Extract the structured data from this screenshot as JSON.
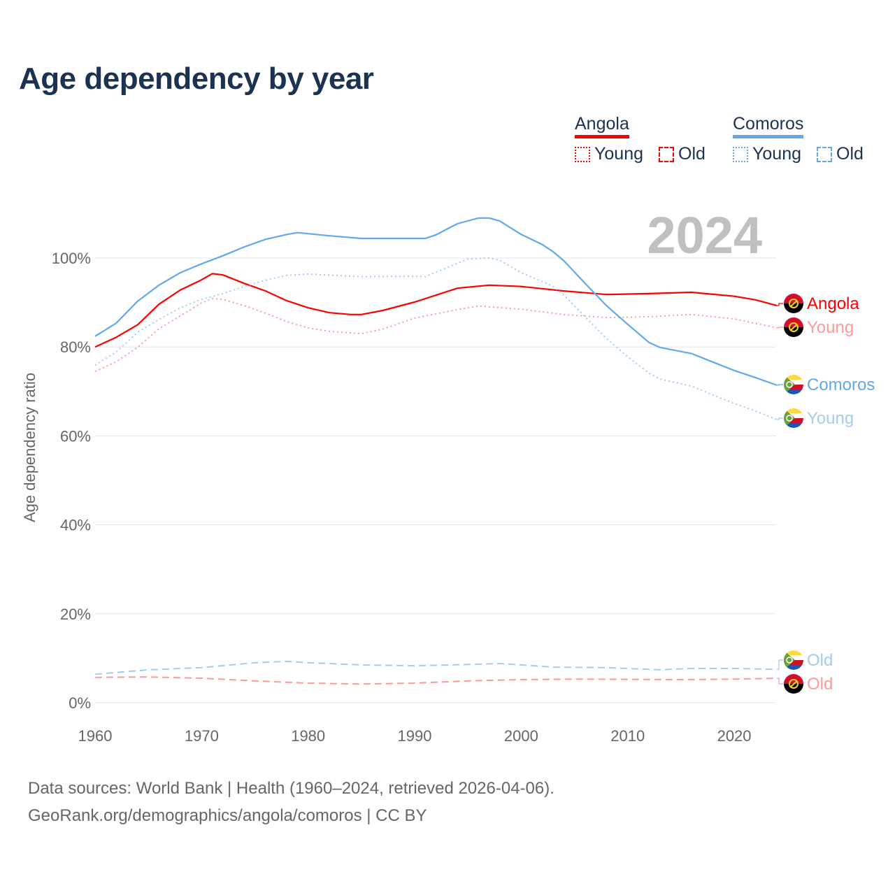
{
  "title": "Age dependency by year",
  "legend": {
    "groups": [
      {
        "country": "Angola",
        "color": "#ff0000",
        "young_label": "Young",
        "old_label": "Old"
      },
      {
        "country": "Comoros",
        "color": "#62a8ea",
        "young_label": "Young",
        "old_label": "Old"
      }
    ]
  },
  "footer": {
    "line1": "Data sources: World Bank | Health (1960–2024, retrieved 2026-04-06).",
    "line2": "GeoRank.org/demographics/angola/comoros | CC BY"
  },
  "chart_data": {
    "type": "line",
    "title": "Age dependency by year",
    "year_watermark": "2024",
    "xlabel": "",
    "ylabel": "Age dependency ratio",
    "xlim": [
      1960,
      2024
    ],
    "ylim": [
      0,
      110
    ],
    "x_ticks": [
      "1960",
      "1970",
      "1980",
      "1990",
      "2000",
      "2010",
      "2020"
    ],
    "y_ticks": [
      "0%",
      "20%",
      "40%",
      "60%",
      "80%",
      "100%"
    ],
    "grid": true,
    "series": [
      {
        "name": "Angola",
        "end_label": "Angola",
        "country": "Angola",
        "kind": "total",
        "color": "#ff0000",
        "style": "solid",
        "points": [
          [
            1960,
            80.0
          ],
          [
            1962,
            82.2
          ],
          [
            1964,
            85.0
          ],
          [
            1966,
            89.6
          ],
          [
            1968,
            92.8
          ],
          [
            1970,
            95.1
          ],
          [
            1971,
            96.5
          ],
          [
            1972,
            96.2
          ],
          [
            1974,
            94.3
          ],
          [
            1976,
            92.6
          ],
          [
            1978,
            90.4
          ],
          [
            1980,
            88.8
          ],
          [
            1982,
            87.7
          ],
          [
            1984,
            87.3
          ],
          [
            1985,
            87.3
          ],
          [
            1987,
            88.2
          ],
          [
            1990,
            90.1
          ],
          [
            1994,
            93.2
          ],
          [
            1997,
            93.9
          ],
          [
            2000,
            93.6
          ],
          [
            2004,
            92.6
          ],
          [
            2008,
            91.8
          ],
          [
            2012,
            92.0
          ],
          [
            2016,
            92.3
          ],
          [
            2020,
            91.4
          ],
          [
            2022,
            90.6
          ],
          [
            2024,
            89.3
          ]
        ]
      },
      {
        "name": "Angola Young",
        "end_label": "Young",
        "country": "Angola",
        "kind": "young",
        "color": "#ff9a9a",
        "style": "dotted",
        "points": [
          [
            1960,
            74.5
          ],
          [
            1962,
            76.7
          ],
          [
            1964,
            79.9
          ],
          [
            1966,
            84.1
          ],
          [
            1968,
            87.0
          ],
          [
            1970,
            89.9
          ],
          [
            1971,
            90.9
          ],
          [
            1972,
            90.7
          ],
          [
            1974,
            89.3
          ],
          [
            1976,
            87.6
          ],
          [
            1978,
            85.7
          ],
          [
            1980,
            84.3
          ],
          [
            1982,
            83.5
          ],
          [
            1985,
            83.0
          ],
          [
            1987,
            84.0
          ],
          [
            1990,
            86.5
          ],
          [
            1994,
            88.4
          ],
          [
            1996,
            89.2
          ],
          [
            2000,
            88.5
          ],
          [
            2004,
            87.3
          ],
          [
            2008,
            86.6
          ],
          [
            2012,
            86.8
          ],
          [
            2016,
            87.3
          ],
          [
            2020,
            86.3
          ],
          [
            2024,
            84.3
          ]
        ]
      },
      {
        "name": "Comoros",
        "end_label": "Comoros",
        "country": "Comoros",
        "kind": "total",
        "color": "#62a8ea",
        "style": "solid",
        "points": [
          [
            1960,
            82.4
          ],
          [
            1962,
            85.4
          ],
          [
            1964,
            90.3
          ],
          [
            1966,
            93.9
          ],
          [
            1968,
            96.7
          ],
          [
            1970,
            98.7
          ],
          [
            1972,
            100.5
          ],
          [
            1974,
            102.5
          ],
          [
            1976,
            104.2
          ],
          [
            1978,
            105.3
          ],
          [
            1979,
            105.7
          ],
          [
            1982,
            105.0
          ],
          [
            1985,
            104.4
          ],
          [
            1990,
            104.4
          ],
          [
            1991,
            104.4
          ],
          [
            1992,
            105.2
          ],
          [
            1994,
            107.7
          ],
          [
            1996,
            109.0
          ],
          [
            1997,
            109.0
          ],
          [
            1998,
            108.3
          ],
          [
            2000,
            105.3
          ],
          [
            2002,
            103.0
          ],
          [
            2003,
            101.4
          ],
          [
            2004,
            99.4
          ],
          [
            2006,
            94.3
          ],
          [
            2008,
            89.3
          ],
          [
            2010,
            85.1
          ],
          [
            2012,
            81.0
          ],
          [
            2013,
            79.9
          ],
          [
            2016,
            78.5
          ],
          [
            2018,
            76.6
          ],
          [
            2020,
            74.7
          ],
          [
            2022,
            73.1
          ],
          [
            2024,
            71.4
          ]
        ]
      },
      {
        "name": "Comoros Young",
        "end_label": "Young",
        "country": "Comoros",
        "kind": "young",
        "color": "#a4cbf2",
        "style": "dotted",
        "points": [
          [
            1960,
            75.9
          ],
          [
            1962,
            78.9
          ],
          [
            1964,
            83.3
          ],
          [
            1966,
            86.2
          ],
          [
            1968,
            88.8
          ],
          [
            1970,
            90.7
          ],
          [
            1972,
            92.0
          ],
          [
            1974,
            93.6
          ],
          [
            1976,
            95.0
          ],
          [
            1978,
            96.1
          ],
          [
            1980,
            96.4
          ],
          [
            1985,
            95.8
          ],
          [
            1990,
            95.9
          ],
          [
            1991,
            95.8
          ],
          [
            1993,
            97.8
          ],
          [
            1995,
            99.8
          ],
          [
            1997,
            100.0
          ],
          [
            1998,
            99.5
          ],
          [
            2000,
            96.7
          ],
          [
            2002,
            94.7
          ],
          [
            2003,
            93.6
          ],
          [
            2004,
            91.7
          ],
          [
            2006,
            86.8
          ],
          [
            2008,
            81.9
          ],
          [
            2010,
            77.8
          ],
          [
            2012,
            74.1
          ],
          [
            2013,
            72.8
          ],
          [
            2016,
            71.2
          ],
          [
            2018,
            69.2
          ],
          [
            2020,
            67.3
          ],
          [
            2022,
            65.6
          ],
          [
            2024,
            63.7
          ]
        ]
      },
      {
        "name": "Comoros Old",
        "end_label": "Old",
        "country": "Comoros",
        "kind": "old",
        "color": "#a4cbf2",
        "style": "dashed",
        "points": [
          [
            1960,
            6.4
          ],
          [
            1965,
            7.4
          ],
          [
            1970,
            7.9
          ],
          [
            1975,
            9.0
          ],
          [
            1978,
            9.3
          ],
          [
            1980,
            9.0
          ],
          [
            1985,
            8.5
          ],
          [
            1990,
            8.3
          ],
          [
            1995,
            8.6
          ],
          [
            1998,
            8.8
          ],
          [
            2000,
            8.5
          ],
          [
            2003,
            8.0
          ],
          [
            2008,
            7.9
          ],
          [
            2013,
            7.4
          ],
          [
            2016,
            7.7
          ],
          [
            2020,
            7.7
          ],
          [
            2024,
            7.5
          ]
        ]
      },
      {
        "name": "Angola Old",
        "end_label": "Old",
        "country": "Angola",
        "kind": "old",
        "color": "#ff9a9a",
        "style": "dashed",
        "points": [
          [
            1960,
            5.7
          ],
          [
            1965,
            5.8
          ],
          [
            1970,
            5.5
          ],
          [
            1975,
            4.9
          ],
          [
            1980,
            4.4
          ],
          [
            1985,
            4.2
          ],
          [
            1990,
            4.4
          ],
          [
            1995,
            4.9
          ],
          [
            2000,
            5.2
          ],
          [
            2005,
            5.3
          ],
          [
            2015,
            5.2
          ],
          [
            2020,
            5.3
          ],
          [
            2024,
            5.5
          ]
        ]
      }
    ]
  }
}
